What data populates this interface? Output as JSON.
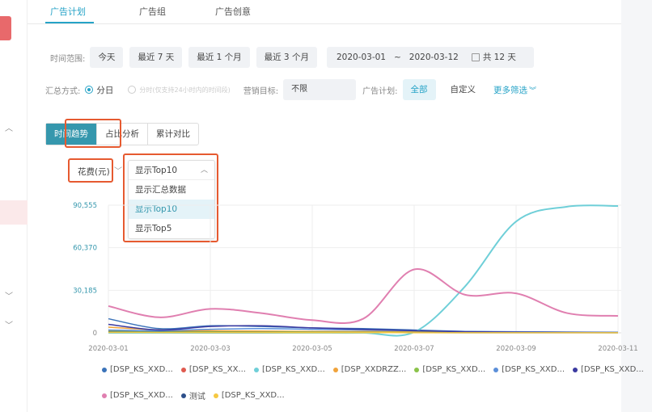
{
  "tabs": [
    {
      "label": "广告计划",
      "active": true
    },
    {
      "label": "广告组",
      "active": false
    },
    {
      "label": "广告创意",
      "active": false
    }
  ],
  "filters": {
    "time_label": "时间范围:",
    "time_buttons": [
      "今天",
      "最近 7 天",
      "最近 1 个月",
      "最近 3 个月"
    ],
    "date_start": "2020-03-01",
    "date_sep": "~",
    "date_end": "2020-03-12",
    "days_total": "共 12 天",
    "agg_label": "汇总方式:",
    "agg_day": "分日",
    "agg_hour": "分时(仅支持24小时内的时间段)",
    "goal_label": "营销目标:",
    "goal_value": "不限",
    "plan_label": "广告计划:",
    "plan_all": "全部",
    "plan_custom": "自定义",
    "more": "更多筛选"
  },
  "view_tabs": [
    {
      "label": "时间趋势",
      "active": true
    },
    {
      "label": "占比分析",
      "active": false
    },
    {
      "label": "累计对比",
      "active": false
    }
  ],
  "metric": "花费(元)",
  "dropdown": {
    "current": "显示Top10",
    "options": [
      {
        "label": "显示汇总数据",
        "selected": false
      },
      {
        "label": "显示Top10",
        "selected": true
      },
      {
        "label": "显示Top5",
        "selected": false
      }
    ]
  },
  "colors": {
    "accent": "#26a3c7",
    "highlight": "#e65a30"
  },
  "chart_data": {
    "type": "line",
    "x": [
      "2020-03-01",
      "2020-03-02",
      "2020-03-03",
      "2020-03-04",
      "2020-03-05",
      "2020-03-06",
      "2020-03-07",
      "2020-03-08",
      "2020-03-09",
      "2020-03-10",
      "2020-03-11"
    ],
    "x_tick_labels": [
      "2020-03-01",
      "2020-03-03",
      "2020-03-05",
      "2020-03-07",
      "2020-03-09",
      "2020-03-11"
    ],
    "y_tick_labels": [
      "0",
      "30,185",
      "60,370",
      "90,555"
    ],
    "ylim": [
      0,
      90555
    ],
    "grid": true,
    "legend_position": "bottom",
    "series": [
      {
        "name": "[DSP_KS_XXD...",
        "color": "#3b73b9",
        "values": [
          10000,
          3000,
          5000,
          4500,
          3500,
          3000,
          2000,
          1000,
          500,
          300,
          200
        ]
      },
      {
        "name": "[DSP_KS_XX...",
        "color": "#e05a4f",
        "values": [
          1500,
          1000,
          1200,
          1100,
          900,
          800,
          700,
          600,
          500,
          400,
          300
        ]
      },
      {
        "name": "[DSP_KS_XXD...",
        "color": "#6fcfd8",
        "values": [
          0,
          0,
          0,
          0,
          0,
          0,
          500,
          33000,
          79000,
          89500,
          90000
        ]
      },
      {
        "name": "[DSP_XXDRZZ...",
        "color": "#f0a33b",
        "values": [
          4000,
          2000,
          1500,
          1200,
          1000,
          900,
          800,
          700,
          600,
          500,
          400
        ]
      },
      {
        "name": "[DSP_KS_XXD...",
        "color": "#8bc34a",
        "values": [
          1000,
          800,
          700,
          600,
          500,
          400,
          300,
          250,
          200,
          150,
          100
        ]
      },
      {
        "name": "[DSP_KS_XXD...",
        "color": "#5b8fd9",
        "values": [
          2000,
          1500,
          2500,
          3000,
          2500,
          2000,
          1500,
          1000,
          800,
          600,
          400
        ]
      },
      {
        "name": "[DSP_KS_XXD...",
        "color": "#3b3aa0",
        "values": [
          6000,
          2000,
          4500,
          5000,
          3500,
          2500,
          1500,
          800,
          500,
          300,
          200
        ]
      },
      {
        "name": "[DSP_KS_XXD...",
        "color": "#e07fb0",
        "values": [
          19000,
          11000,
          17000,
          14000,
          9000,
          10000,
          45000,
          27000,
          28000,
          14000,
          12000
        ]
      },
      {
        "name": "测试",
        "color": "#2d4f8a",
        "values": [
          500,
          400,
          300,
          300,
          200,
          200,
          150,
          100,
          100,
          50,
          50
        ]
      },
      {
        "name": "[DSP_KS_XXD...",
        "color": "#f5c842",
        "values": [
          300,
          250,
          200,
          200,
          150,
          150,
          100,
          100,
          80,
          60,
          50
        ]
      }
    ]
  }
}
